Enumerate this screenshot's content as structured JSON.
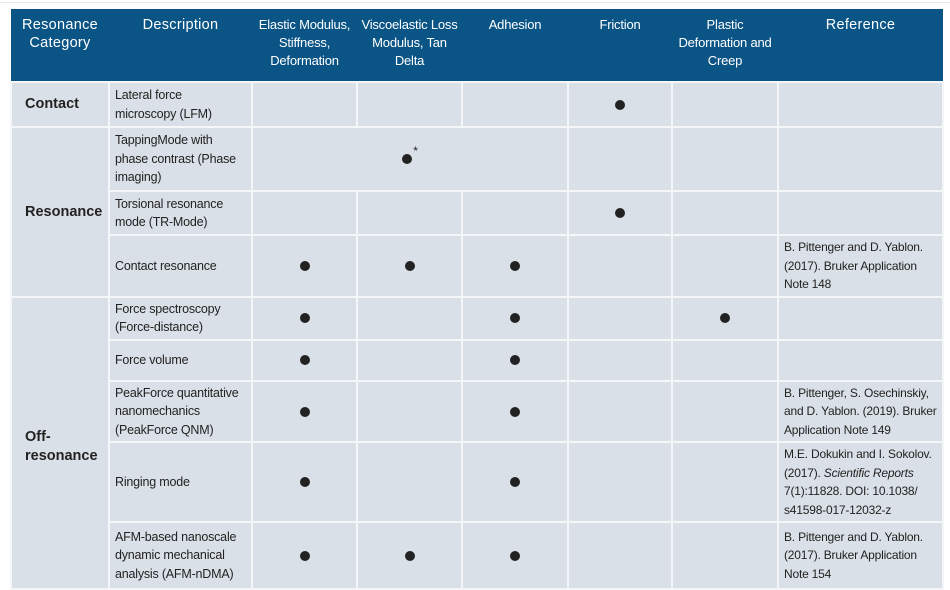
{
  "colors": {
    "header_bg": "#0b5486",
    "cell_bg": "#dae0e7",
    "mark": "#222222"
  },
  "headers": [
    "Resonance Category",
    "Description",
    "Elastic Modulus, Stiffness, Deformation",
    "Viscoelastic Loss Modulus, Tan Delta",
    "Adhesion",
    "Friction",
    "Plastic Deformation and Creep",
    "Reference"
  ],
  "categories": [
    {
      "label": "Contact",
      "rows": 1
    },
    {
      "label": "Resonance",
      "rows": 3
    },
    {
      "label": "Off-resonance",
      "rows": 5
    }
  ],
  "rows": [
    {
      "description": "Lateral force microscopy (LFM)",
      "marks": [
        false,
        false,
        false,
        true,
        false
      ],
      "reference": []
    },
    {
      "description": "TappingMode with phase contrast (Phase imaging)",
      "merged_mark": true,
      "merged_note": "*",
      "marks": [
        false,
        false,
        false,
        false,
        false
      ],
      "reference": []
    },
    {
      "description": "Torsional resonance mode (TR-Mode)",
      "marks": [
        false,
        false,
        false,
        true,
        false
      ],
      "reference": []
    },
    {
      "description": "Contact resonance",
      "marks": [
        true,
        true,
        true,
        false,
        false
      ],
      "reference": [
        {
          "text": "B. Pittenger and D. Yablon. (2017). Bruker Application Note 148"
        }
      ]
    },
    {
      "description": "Force spectroscopy (Force-distance)",
      "marks": [
        true,
        false,
        true,
        false,
        true
      ],
      "reference": []
    },
    {
      "description": "Force volume",
      "marks": [
        true,
        false,
        true,
        false,
        false
      ],
      "reference": []
    },
    {
      "description": "PeakForce quantitative nanomechanics (PeakForce QNM)",
      "marks": [
        true,
        false,
        true,
        false,
        false
      ],
      "reference": [
        {
          "text": "B. Pittenger, S. Osechinskiy, and D. Yablon. (2019). Bruker Application Note 149"
        }
      ]
    },
    {
      "description": "Ringing mode",
      "marks": [
        true,
        false,
        true,
        false,
        false
      ],
      "reference": [
        {
          "text": "M.E. Dokukin and I. Sokolov. (2017). "
        },
        {
          "text": "Scientific Reports",
          "italic": true
        },
        {
          "text": " 7(1):11828. DOI: 10.1038/ s41598-017-12032-z"
        }
      ]
    },
    {
      "description": "AFM-based nanoscale dynamic mechanical analysis (AFM-nDMA)",
      "marks": [
        true,
        true,
        true,
        false,
        false
      ],
      "reference": [
        {
          "text": "B. Pittenger and D. Yablon. (2017). Bruker Application Note 154"
        }
      ]
    }
  ]
}
